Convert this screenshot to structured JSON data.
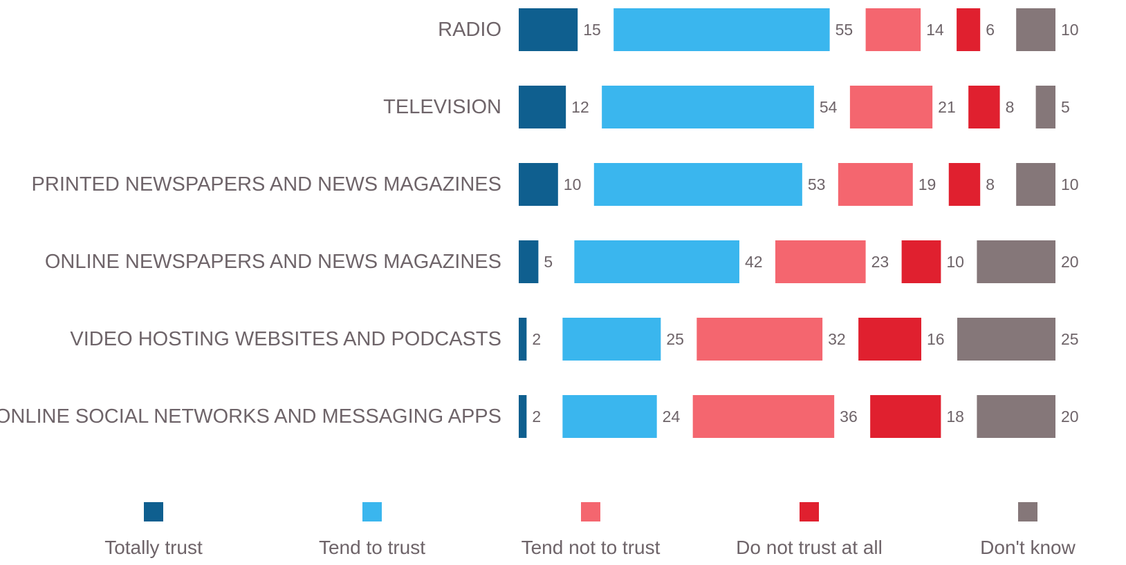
{
  "chart_data": {
    "type": "bar",
    "orientation": "horizontal",
    "stacked": true,
    "title": "",
    "xlabel": "",
    "ylabel": "",
    "grid": false,
    "legend_position": "bottom",
    "categories": [
      "RADIO",
      "TELEVISION",
      "PRINTED NEWSPAPERS AND NEWS MAGAZINES",
      "ONLINE NEWSPAPERS AND NEWS MAGAZINES",
      "VIDEO HOSTING WEBSITES AND PODCASTS",
      "ONLINE SOCIAL NETWORKS AND MESSAGING APPS"
    ],
    "series": [
      {
        "name": "Totally trust",
        "color": "#0f5f8f",
        "values": [
          15,
          12,
          10,
          5,
          2,
          2
        ]
      },
      {
        "name": "Tend to trust",
        "color": "#3ab6ee",
        "values": [
          55,
          54,
          53,
          42,
          25,
          24
        ]
      },
      {
        "name": "Tend not to trust",
        "color": "#f4666f",
        "values": [
          14,
          21,
          19,
          23,
          32,
          36
        ]
      },
      {
        "name": "Do not trust at all",
        "color": "#e0202f",
        "values": [
          6,
          8,
          8,
          10,
          16,
          18
        ]
      },
      {
        "name": "Don't know",
        "color": "#857779",
        "values": [
          10,
          5,
          10,
          20,
          25,
          20
        ]
      }
    ]
  }
}
